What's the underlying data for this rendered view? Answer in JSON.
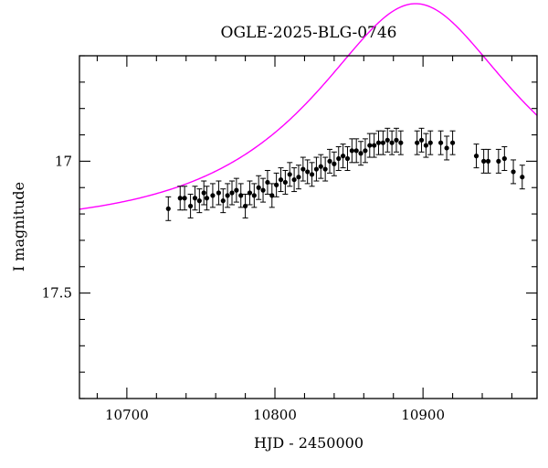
{
  "chart_data": {
    "type": "scatter",
    "title": "OGLE-2025-BLG-0746",
    "xlabel": "HJD - 2450000",
    "ylabel": "I magnitude",
    "xlim": [
      10668,
      10977
    ],
    "ylim": [
      17.9,
      16.6
    ],
    "y_inverted": true,
    "x_ticks": [
      10700,
      10800,
      10900
    ],
    "y_ticks": [
      17,
      17.5
    ],
    "x_tick_labels": [
      "10700",
      "10800",
      "10900"
    ],
    "y_tick_labels": [
      "17",
      "17.5"
    ],
    "grid": false,
    "colors": {
      "points": "#000000",
      "model": "#ff00ff",
      "axes": "#000000"
    },
    "series": [
      {
        "kind": "points-with-errorbars",
        "x": [
          10728,
          10736,
          10739,
          10743,
          10746,
          10749,
          10752,
          10754,
          10758,
          10762,
          10765,
          10768,
          10771,
          10774,
          10777,
          10780,
          10783,
          10786,
          10789,
          10792,
          10795,
          10798,
          10801,
          10804,
          10807,
          10810,
          10813,
          10816,
          10819,
          10822,
          10825,
          10828,
          10831,
          10834,
          10837,
          10840,
          10843,
          10846,
          10849,
          10852,
          10855,
          10858,
          10861,
          10864,
          10867,
          10870,
          10873,
          10876,
          10879,
          10882,
          10885,
          10896,
          10899,
          10902,
          10905,
          10912,
          10916,
          10920,
          10936,
          10941,
          10944,
          10951,
          10955,
          10961,
          10967
        ],
        "y": [
          17.18,
          17.14,
          17.14,
          17.17,
          17.14,
          17.15,
          17.12,
          17.14,
          17.13,
          17.12,
          17.15,
          17.13,
          17.12,
          17.11,
          17.13,
          17.17,
          17.12,
          17.13,
          17.1,
          17.11,
          17.08,
          17.13,
          17.09,
          17.07,
          17.08,
          17.05,
          17.07,
          17.06,
          17.03,
          17.04,
          17.05,
          17.03,
          17.02,
          17.03,
          17.0,
          17.01,
          16.99,
          16.98,
          16.99,
          16.96,
          16.96,
          16.97,
          16.96,
          16.94,
          16.94,
          16.93,
          16.93,
          16.92,
          16.93,
          16.92,
          16.93,
          16.93,
          16.92,
          16.94,
          16.93,
          16.93,
          16.95,
          16.93,
          16.98,
          17.0,
          17.0,
          17.0,
          16.99,
          17.04,
          17.06
        ],
        "err": 0.045
      },
      {
        "kind": "model-curve",
        "model_params": {
          "t0": 10895,
          "tE": 120,
          "u0": 0.5,
          "baseline_mag": 17.25
        }
      }
    ]
  }
}
